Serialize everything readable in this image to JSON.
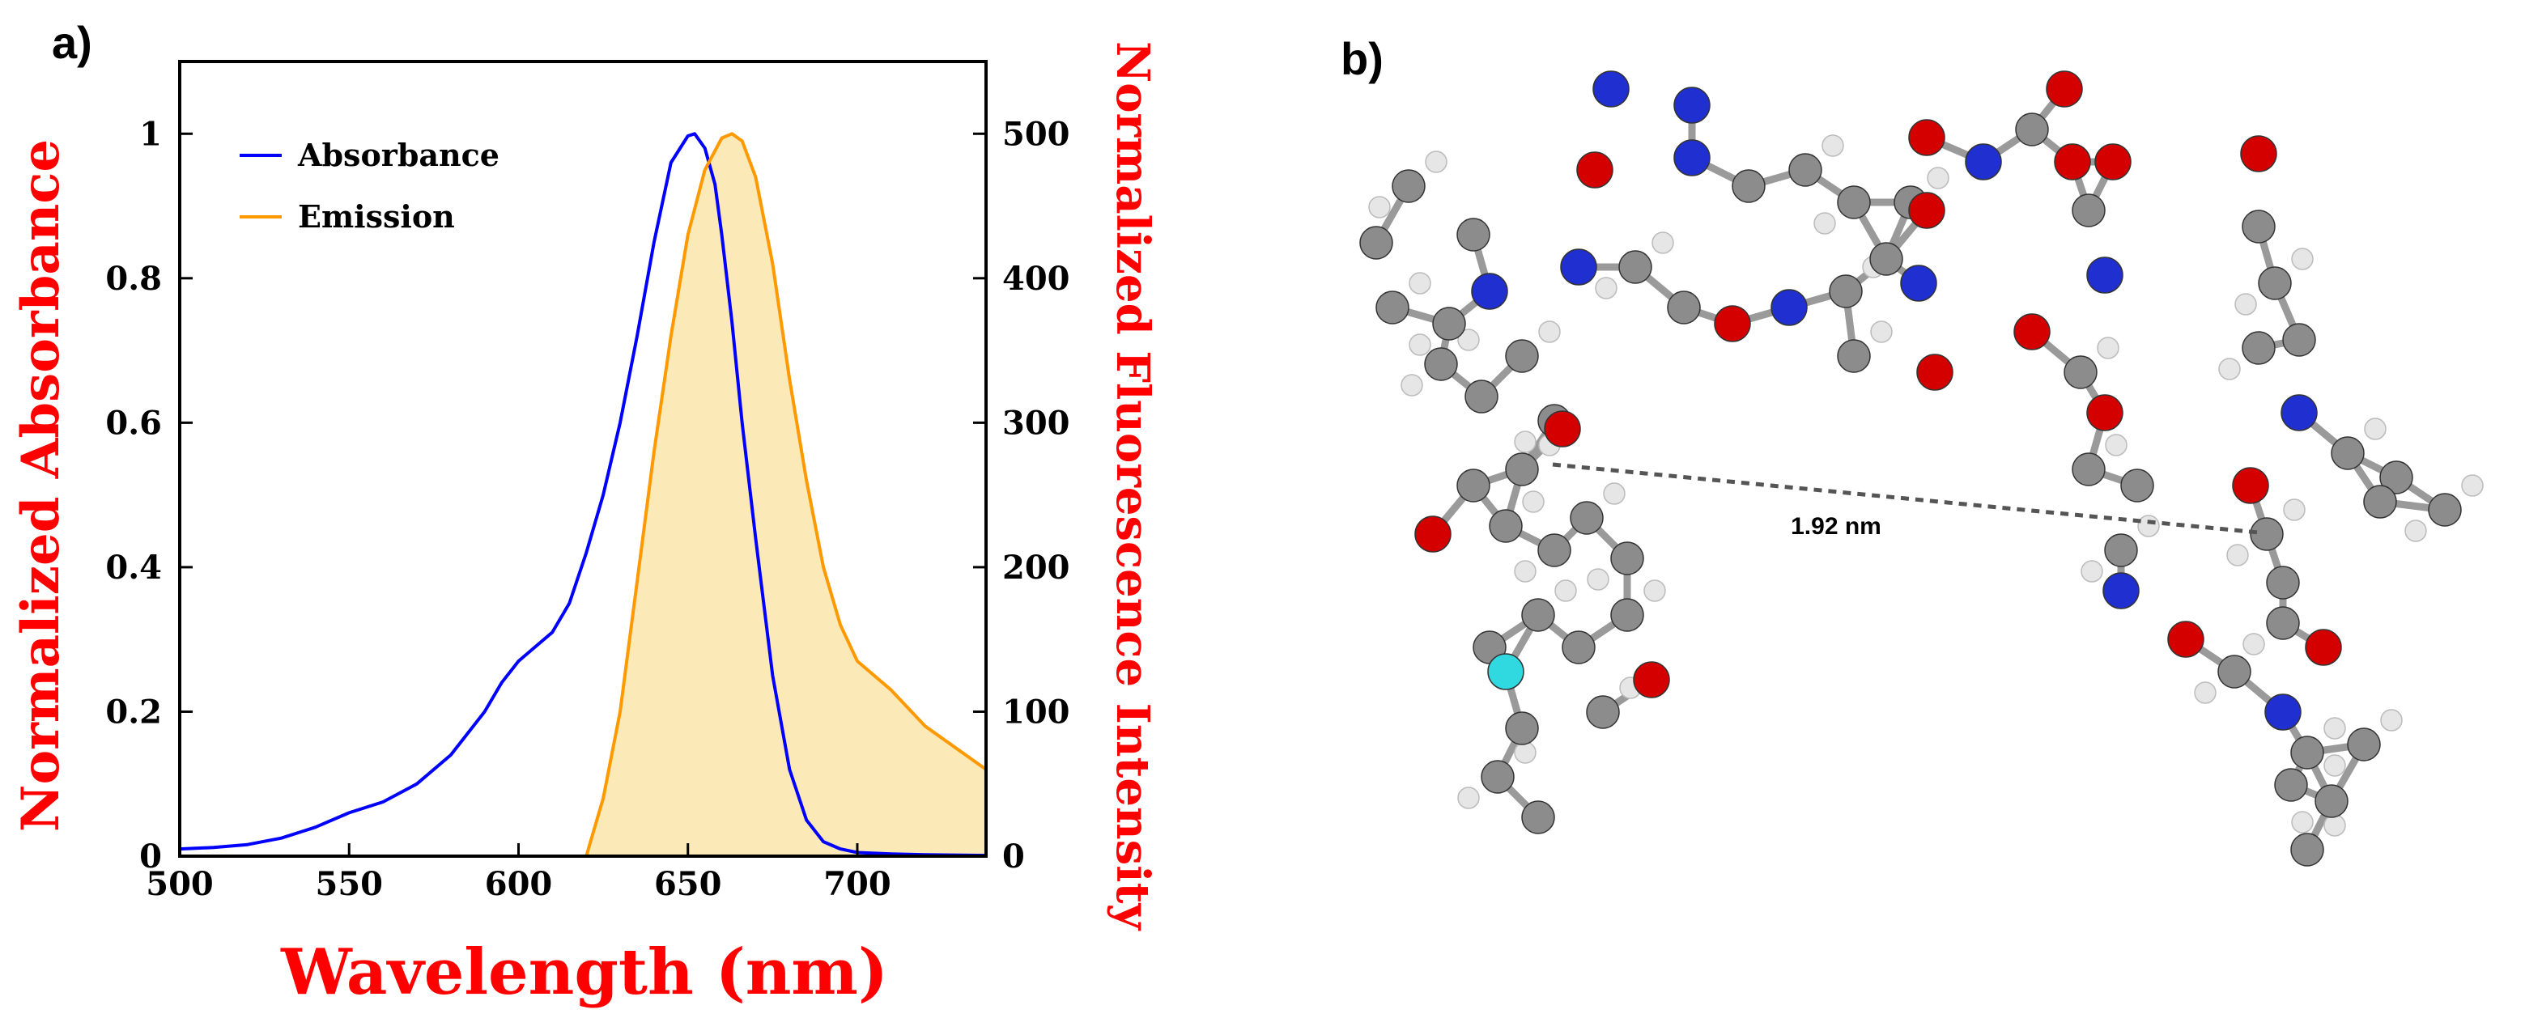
{
  "panels": {
    "a": "a)",
    "b": "b)"
  },
  "chart_data": {
    "type": "line",
    "xlabel": "Wavelength (nm)",
    "ylabel": "Normalized Absorbance",
    "y2label": "Normalized Fluorescence Intensity",
    "xlim": [
      500,
      738
    ],
    "ylim": [
      0,
      1.1
    ],
    "y2lim": [
      0,
      550
    ],
    "xticks": [
      500,
      550,
      600,
      650,
      700
    ],
    "yticks": [
      0,
      0.2,
      0.4,
      0.6,
      0.8,
      1
    ],
    "y2ticks": [
      0,
      100,
      200,
      300,
      400,
      500
    ],
    "legend_position": "top-left",
    "series": [
      {
        "name": "Absorbance",
        "axis": "left",
        "color": "#0000ff",
        "x": [
          500,
          510,
          520,
          530,
          540,
          550,
          560,
          570,
          580,
          590,
          595,
          600,
          605,
          610,
          615,
          620,
          625,
          630,
          635,
          640,
          645,
          650,
          652,
          655,
          658,
          660,
          663,
          666,
          670,
          675,
          680,
          685,
          690,
          695,
          700,
          710,
          720,
          738
        ],
        "y": [
          0.01,
          0.012,
          0.016,
          0.025,
          0.04,
          0.06,
          0.075,
          0.1,
          0.14,
          0.2,
          0.24,
          0.27,
          0.29,
          0.31,
          0.35,
          0.42,
          0.5,
          0.6,
          0.72,
          0.85,
          0.96,
          0.997,
          1.0,
          0.98,
          0.93,
          0.86,
          0.74,
          0.6,
          0.44,
          0.25,
          0.12,
          0.05,
          0.02,
          0.01,
          0.005,
          0.003,
          0.002,
          0.001
        ]
      },
      {
        "name": "Emission",
        "axis": "right",
        "color": "#ff9900",
        "fill": "#fbe9b8",
        "x": [
          620,
          625,
          630,
          635,
          640,
          645,
          650,
          655,
          660,
          663,
          666,
          670,
          675,
          680,
          685,
          690,
          695,
          700,
          710,
          720,
          738
        ],
        "y": [
          0,
          40,
          100,
          190,
          280,
          360,
          430,
          475,
          497,
          500,
          495,
          470,
          410,
          330,
          260,
          200,
          160,
          135,
          115,
          90,
          60
        ]
      }
    ]
  },
  "molecule": {
    "distance_label": "1.92 nm"
  },
  "colors": {
    "carbon": "#8c8c8c",
    "hydrogen": "#e6e6e6",
    "oxygen": "#d40000",
    "nitrogen": "#1f2fd0",
    "fluorine": "#30d8e0"
  }
}
